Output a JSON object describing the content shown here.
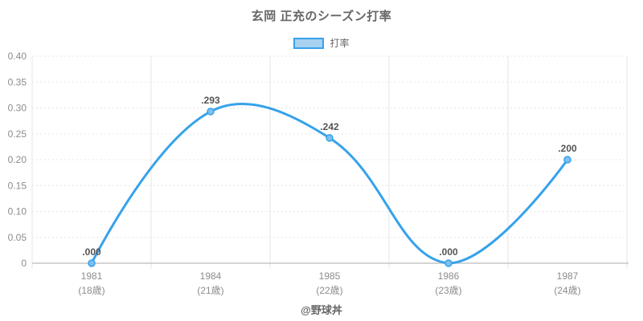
{
  "header": {
    "title": "玄岡 正充のシーズン打率"
  },
  "legend": {
    "label": "打率"
  },
  "footer": {
    "credit": "@野球丼"
  },
  "chart_data": {
    "type": "line",
    "title": "玄岡 正充のシーズン打率",
    "legend_position": "top",
    "grid": true,
    "line_tension": 0.4,
    "ylim": [
      0,
      0.4
    ],
    "yticks": [
      {
        "v": 0.0,
        "label": "0"
      },
      {
        "v": 0.05,
        "label": "0.05"
      },
      {
        "v": 0.1,
        "label": "0.10"
      },
      {
        "v": 0.15,
        "label": "0.15"
      },
      {
        "v": 0.2,
        "label": "0.20"
      },
      {
        "v": 0.25,
        "label": "0.25"
      },
      {
        "v": 0.3,
        "label": "0.30"
      },
      {
        "v": 0.35,
        "label": "0.35"
      },
      {
        "v": 0.4,
        "label": "0.40"
      }
    ],
    "categories_line1": [
      "1981",
      "1984",
      "1985",
      "1986",
      "1987"
    ],
    "categories_line2": [
      "(18歳)",
      "(21歳)",
      "(22歳)",
      "(23歳)",
      "(24歳)"
    ],
    "series": [
      {
        "name": "打率",
        "values": [
          0.0,
          0.293,
          0.242,
          0.0,
          0.2
        ],
        "labels": [
          ".000",
          ".293",
          ".242",
          ".000",
          ".200"
        ]
      }
    ],
    "colors": {
      "line": "#36A2EB",
      "point_fill": "#7EC0EF",
      "legend_fill": "#A9D1F0",
      "grid": "#E6E6E6",
      "axis_line": "#C6C6C6",
      "tick_text": "#8C8C8C",
      "value_label": "#545454",
      "title_text": "#666666",
      "background": "#FFFFFF"
    }
  }
}
